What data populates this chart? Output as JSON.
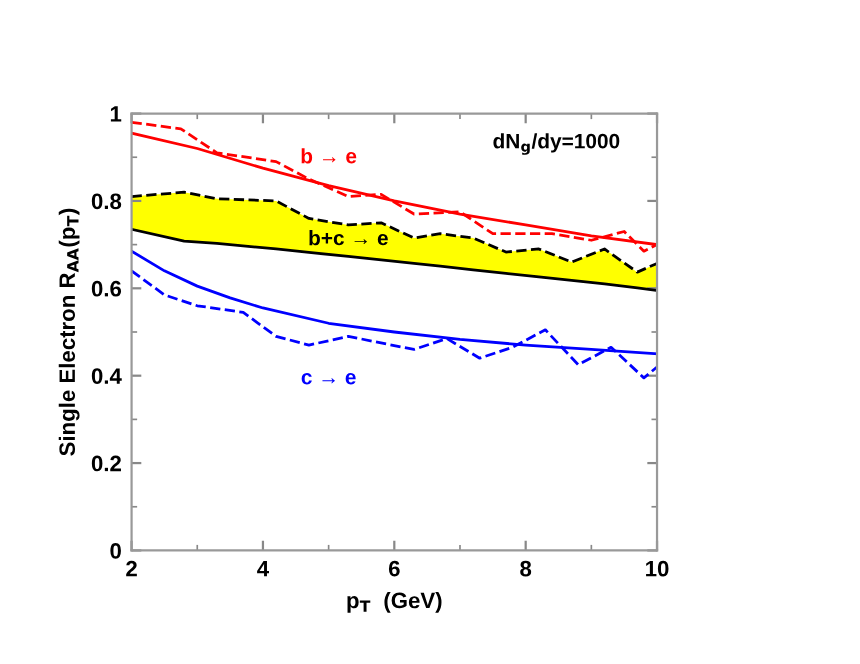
{
  "chart_data": {
    "type": "line",
    "xlabel": "p$_{T}$  (GeV)",
    "ylabel": "Single Electron R$_{AA}$(p$_{T}$)",
    "xlim": [
      2,
      10
    ],
    "xticks": [
      2,
      4,
      6,
      8,
      10
    ],
    "ylim": [
      0,
      1
    ],
    "yticks": [
      0,
      0.2,
      0.4,
      0.6,
      0.8,
      1
    ],
    "grid": false,
    "legend": false,
    "series": [
      {
        "name": "b → e",
        "color": "#ff0000",
        "line_style": "solid",
        "x": [
          2,
          3,
          4,
          5,
          6,
          7,
          8,
          9,
          10
        ],
        "values": [
          0.955,
          0.92,
          0.875,
          0.835,
          0.8,
          0.77,
          0.745,
          0.72,
          0.7
        ]
      },
      {
        "color": "#ff0000",
        "line_style": "dashed",
        "x": [
          2,
          2.75,
          3.3,
          4.2,
          4.7,
          5.3,
          5.8,
          6.3,
          7,
          7.5,
          8.4,
          9,
          9.5,
          9.8,
          10
        ],
        "values": [
          0.98,
          0.965,
          0.91,
          0.89,
          0.85,
          0.81,
          0.815,
          0.77,
          0.775,
          0.725,
          0.725,
          0.71,
          0.73,
          0.685,
          0.7
        ]
      },
      {
        "color": "#000000",
        "line_style": "dashed",
        "x": [
          2,
          2.8,
          3.3,
          4.2,
          4.7,
          5.3,
          5.8,
          6.3,
          6.7,
          7.2,
          7.7,
          8.2,
          8.7,
          9.2,
          9.7,
          10
        ],
        "values": [
          0.81,
          0.82,
          0.805,
          0.8,
          0.76,
          0.745,
          0.75,
          0.715,
          0.725,
          0.715,
          0.683,
          0.69,
          0.66,
          0.69,
          0.637,
          0.657
        ]
      },
      {
        "name": "b+c → e",
        "color": "#000000",
        "line_style": "solid",
        "x": [
          2,
          2.8,
          3.3,
          4.2,
          4.7,
          5.3,
          5.8,
          6.3,
          6.7,
          7.2,
          7.7,
          8.2,
          8.7,
          9.2,
          9.7,
          10
        ],
        "values": [
          0.735,
          0.708,
          0.703,
          0.69,
          0.682,
          0.673,
          0.665,
          0.657,
          0.651,
          0.642,
          0.634,
          0.626,
          0.618,
          0.61,
          0.601,
          0.595
        ],
        "lower": [
          0.735,
          0.708,
          0.703,
          0.69,
          0.682,
          0.673,
          0.665,
          0.657,
          0.651,
          0.642,
          0.634,
          0.626,
          0.618,
          0.61,
          0.601,
          0.595
        ],
        "upper": [
          0.81,
          0.82,
          0.805,
          0.8,
          0.76,
          0.745,
          0.75,
          0.715,
          0.725,
          0.715,
          0.683,
          0.69,
          0.66,
          0.69,
          0.637,
          0.657
        ]
      },
      {
        "name": "c → e",
        "color": "#0000ff",
        "line_style": "solid",
        "x": [
          2,
          2.5,
          3,
          3.5,
          4,
          5,
          6,
          7,
          8,
          9,
          10
        ],
        "values": [
          0.685,
          0.64,
          0.605,
          0.578,
          0.555,
          0.52,
          0.5,
          0.483,
          0.47,
          0.46,
          0.45
        ]
      },
      {
        "color": "#0000ff",
        "line_style": "dashed",
        "x": [
          2,
          2.5,
          3,
          3.7,
          4.2,
          4.7,
          5.3,
          6.3,
          6.8,
          7.3,
          7.8,
          8.3,
          8.8,
          9.3,
          9.8,
          10
        ],
        "values": [
          0.64,
          0.585,
          0.56,
          0.545,
          0.49,
          0.47,
          0.49,
          0.46,
          0.485,
          0.44,
          0.465,
          0.505,
          0.425,
          0.465,
          0.395,
          0.42
        ]
      }
    ],
    "annotations": [
      "dN$_{g}$/dy=1000"
    ]
  }
}
